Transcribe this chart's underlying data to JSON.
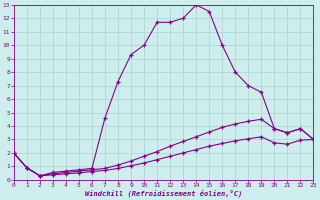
{
  "xlabel": "Windchill (Refroidissement éolien,°C)",
  "xlim": [
    0,
    23
  ],
  "ylim": [
    0,
    13
  ],
  "xticks": [
    0,
    1,
    2,
    3,
    4,
    5,
    6,
    7,
    8,
    9,
    10,
    11,
    12,
    13,
    14,
    15,
    16,
    17,
    18,
    19,
    20,
    21,
    22,
    23
  ],
  "yticks": [
    0,
    1,
    2,
    3,
    4,
    5,
    6,
    7,
    8,
    9,
    10,
    11,
    12,
    13
  ],
  "bg_color": "#cdeeed",
  "grid_color": "#aad4d2",
  "line_color": "#880088",
  "line1_x": [
    0,
    1,
    2,
    3,
    4,
    5,
    6,
    7,
    8,
    9,
    10,
    11,
    12,
    13,
    14,
    15,
    16,
    17,
    18,
    19,
    20,
    21,
    22,
    23
  ],
  "line1_y": [
    2.0,
    0.9,
    0.3,
    0.55,
    0.65,
    0.75,
    0.85,
    4.6,
    7.3,
    9.3,
    10.0,
    11.7,
    11.7,
    12.0,
    13.0,
    12.5,
    10.0,
    8.0,
    7.0,
    6.5,
    3.8,
    3.5,
    3.8,
    3.0
  ],
  "line2_x": [
    0,
    1,
    2,
    3,
    4,
    5,
    6,
    7,
    8,
    9,
    10,
    11,
    12,
    13,
    14,
    15,
    16,
    17,
    18,
    19,
    20,
    21,
    22,
    23
  ],
  "line2_y": [
    2.0,
    0.9,
    0.3,
    0.45,
    0.55,
    0.65,
    0.75,
    0.85,
    1.1,
    1.4,
    1.75,
    2.1,
    2.5,
    2.85,
    3.2,
    3.55,
    3.9,
    4.15,
    4.35,
    4.5,
    3.8,
    3.5,
    3.8,
    3.0
  ],
  "line3_x": [
    0,
    1,
    2,
    3,
    4,
    5,
    6,
    7,
    8,
    9,
    10,
    11,
    12,
    13,
    14,
    15,
    16,
    17,
    18,
    19,
    20,
    21,
    22,
    23
  ],
  "line3_y": [
    2.0,
    0.9,
    0.3,
    0.38,
    0.45,
    0.52,
    0.62,
    0.7,
    0.85,
    1.05,
    1.25,
    1.5,
    1.75,
    2.0,
    2.25,
    2.5,
    2.7,
    2.9,
    3.05,
    3.2,
    2.75,
    2.65,
    2.95,
    3.0
  ],
  "marker": "+",
  "markersize": 3,
  "linewidth": 0.8
}
